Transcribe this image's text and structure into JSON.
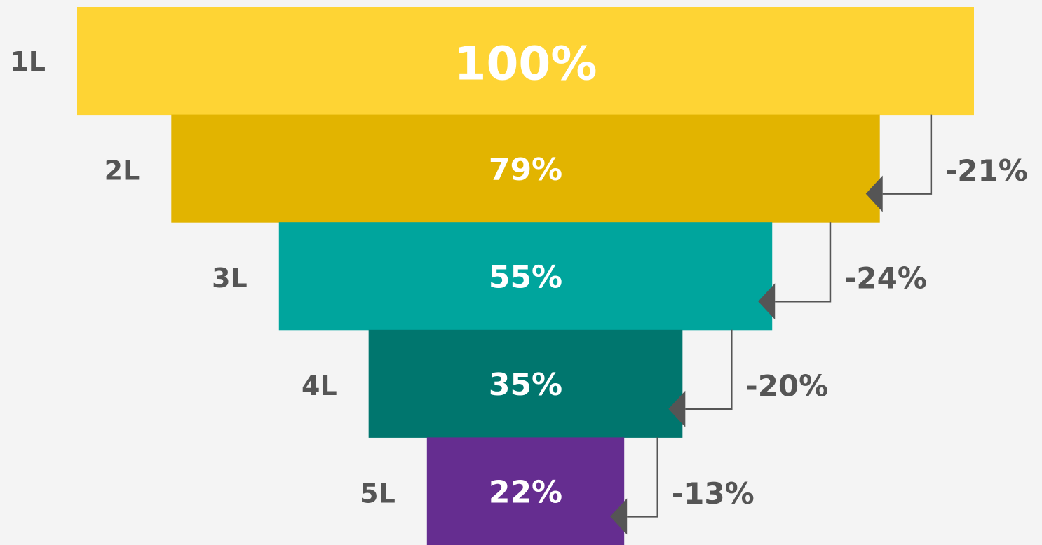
{
  "chart_data": {
    "type": "funnel",
    "categories": [
      "1L",
      "2L",
      "3L",
      "4L",
      "5L"
    ],
    "values": [
      100,
      79,
      55,
      35,
      22
    ],
    "value_labels": [
      "100%",
      "79%",
      "55%",
      "35%",
      "22%"
    ],
    "colors": [
      "#fed434",
      "#e2b400",
      "#00a59d",
      "#00766e",
      "#652d90"
    ],
    "drops": {
      "values": [
        -21,
        -24,
        -20,
        -13
      ],
      "value_labels": [
        "-21%",
        "-24%",
        "-20%",
        "-13%"
      ]
    }
  }
}
